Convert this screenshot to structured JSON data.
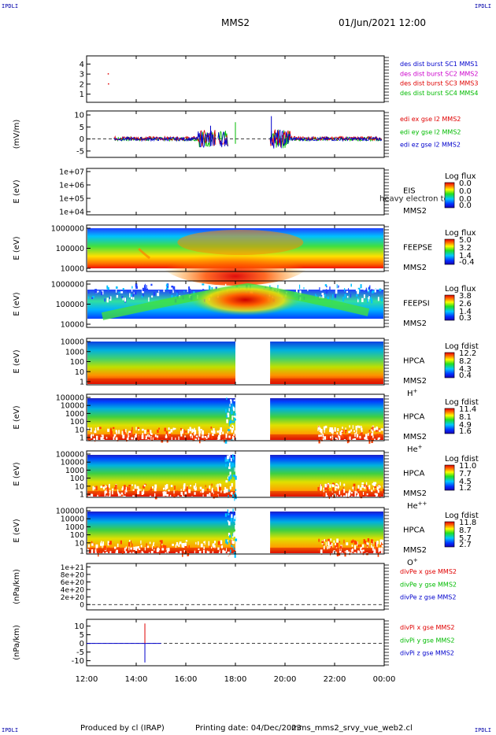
{
  "header": {
    "corner_label": "IPDLI",
    "spacecraft": "MMS2",
    "datetime": "01/Jun/2021 12:00"
  },
  "footer": {
    "producer": "Produced by cl (IRAP)",
    "printing": "Printing date: 04/Dec/2023",
    "script": "mms_mms2_srvy_vue_web2.cl"
  },
  "time_axis": {
    "ticks": [
      "12:00",
      "14:00",
      "16:00",
      "18:00",
      "20:00",
      "22:00",
      "00:00"
    ],
    "range_hours": [
      12,
      24
    ]
  },
  "colors": {
    "red": "#e00000",
    "magenta": "#cc00cc",
    "green": "#00bb00",
    "blue": "#0000cc"
  },
  "chart_data": [
    {
      "type": "scatter",
      "id": "des-dist-burst",
      "yticks": [
        "4",
        "3",
        "2",
        "1"
      ],
      "ylim": [
        0.5,
        4.5
      ],
      "legend": [
        {
          "text": "des dist burst SC1 MMS1",
          "color": "#0000cc"
        },
        {
          "text": "des dist burst SC2 MMS2",
          "color": "#cc00cc"
        },
        {
          "text": "des dist burst SC3 MMS3",
          "color": "#e00000"
        },
        {
          "text": "des dist burst SC4 MMS4",
          "color": "#00bb00"
        }
      ],
      "points": [
        {
          "x": 12.85,
          "y": 3,
          "color": "#e00000"
        },
        {
          "x": 12.86,
          "y": 2,
          "color": "#e00000"
        }
      ]
    },
    {
      "type": "line",
      "id": "edi-e-field",
      "ylabel": "(mV/m)",
      "yticks": [
        "10",
        "5",
        "0",
        "-5"
      ],
      "ylim": [
        -7,
        11
      ],
      "legend": [
        {
          "text": "edi ex gse l2 MMS2",
          "color": "#e00000"
        },
        {
          "text": "edi ey gse l2 MMS2",
          "color": "#00bb00"
        },
        {
          "text": "edi ez gse l2 MMS2",
          "color": "#0000cc"
        }
      ]
    },
    {
      "type": "heatmap",
      "id": "eis",
      "ylabel": "E (eV)",
      "yticks": [
        "1e+07",
        "1e+06",
        "1e+05",
        "1e+04"
      ],
      "instrument": "EIS",
      "instrument_extra": "heavy electron to",
      "spacecraft": "MMS2",
      "cbar_title": "Log flux",
      "cbar_ticks": [
        "0.0",
        "0.0",
        "0.0",
        "0.0"
      ]
    },
    {
      "type": "heatmap",
      "id": "feeps-e",
      "ylabel": "E (eV)",
      "yticks": [
        "1000000",
        "100000",
        "10000"
      ],
      "instrument": "FEEPSE",
      "spacecraft": "MMS2",
      "cbar_title": "Log flux",
      "cbar_ticks": [
        "5.0",
        "3.2",
        "1.4",
        "-0.4"
      ]
    },
    {
      "type": "heatmap",
      "id": "feeps-i",
      "ylabel": "E (eV)",
      "yticks": [
        "1000000",
        "100000",
        "10000"
      ],
      "instrument": "FEEPSI",
      "spacecraft": "MMS2",
      "cbar_title": "Log flux",
      "cbar_ticks": [
        "3.8",
        "2.6",
        "1.4",
        "0.3"
      ]
    },
    {
      "type": "heatmap",
      "id": "hpca-h",
      "ylabel": "E (eV)",
      "yticks": [
        "10000",
        "1000",
        "100",
        "10",
        "1"
      ],
      "instrument": "HPCA",
      "spacecraft": "MMS2",
      "species": "H",
      "species_sup": "+",
      "cbar_title": "Log fdist",
      "cbar_ticks": [
        "12.2",
        "8.2",
        "4.3",
        "0.4"
      ],
      "gap_hours": [
        18.0,
        19.4
      ]
    },
    {
      "type": "heatmap",
      "id": "hpca-he1",
      "ylabel": "E (eV)",
      "yticks": [
        "100000",
        "10000",
        "1000",
        "100",
        "10",
        "1"
      ],
      "instrument": "HPCA",
      "spacecraft": "MMS2",
      "species": "He",
      "species_sup": "+",
      "cbar_title": "Log fdist",
      "cbar_ticks": [
        "11.4",
        "8.1",
        "4.9",
        "1.6"
      ],
      "gap_hours": [
        18.0,
        19.4
      ]
    },
    {
      "type": "heatmap",
      "id": "hpca-he2",
      "ylabel": "E (eV)",
      "yticks": [
        "100000",
        "10000",
        "1000",
        "100",
        "10",
        "1"
      ],
      "instrument": "HPCA",
      "spacecraft": "MMS2",
      "species": "He",
      "species_sup": "++",
      "cbar_title": "Log fdist",
      "cbar_ticks": [
        "11.0",
        "7.7",
        "4.5",
        "1.2"
      ],
      "gap_hours": [
        18.0,
        19.4
      ]
    },
    {
      "type": "heatmap",
      "id": "hpca-o",
      "ylabel": "E (eV)",
      "yticks": [
        "100000",
        "10000",
        "1000",
        "100",
        "10",
        "1"
      ],
      "instrument": "HPCA",
      "spacecraft": "MMS2",
      "species": "O",
      "species_sup": "+",
      "cbar_title": "Log fdist",
      "cbar_ticks": [
        "11.8",
        "8.7",
        "5.7",
        "2.7"
      ],
      "gap_hours": [
        18.0,
        19.4
      ]
    },
    {
      "type": "line",
      "id": "divpe",
      "ylabel": "(nPa/km)",
      "yticks": [
        "1e+21",
        "8e+20",
        "6e+20",
        "4e+20",
        "2e+20",
        "0"
      ],
      "ylim": [
        -1e+20,
        1.05e+21
      ],
      "legend": [
        {
          "text": "divPe x gse MMS2",
          "color": "#e00000"
        },
        {
          "text": "divPe y gse MMS2",
          "color": "#00bb00"
        },
        {
          "text": "divPe z gse MMS2",
          "color": "#0000cc"
        }
      ]
    },
    {
      "type": "line",
      "id": "divpi",
      "ylabel": "(nPa/km)",
      "yticks": [
        "10",
        "5",
        "0",
        "-5",
        "-10"
      ],
      "ylim": [
        -12,
        13
      ],
      "legend": [
        {
          "text": "divPi x gse MMS2",
          "color": "#e00000"
        },
        {
          "text": "divPi y gse MMS2",
          "color": "#00bb00"
        },
        {
          "text": "divPi z gse MMS2",
          "color": "#0000cc"
        }
      ],
      "spike_x": 14.35
    }
  ]
}
